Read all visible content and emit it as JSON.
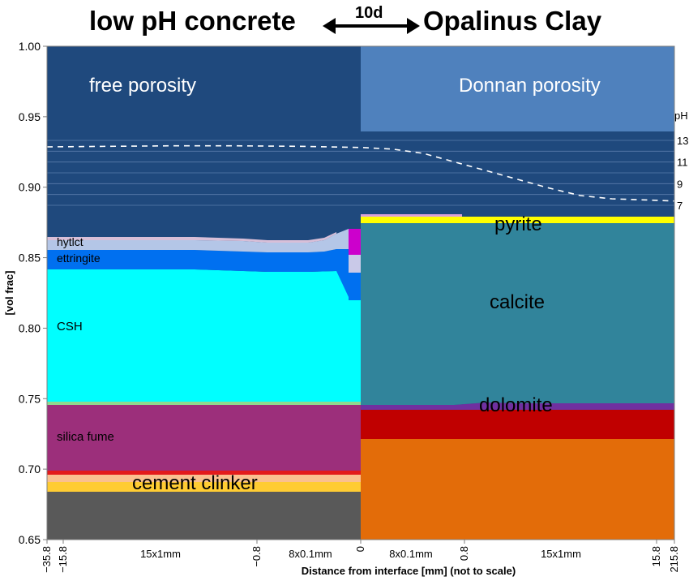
{
  "chart_data": {
    "type": "area",
    "title_left": "low pH concrete",
    "title_right": "Opalinus Clay",
    "arrow_label": "10d",
    "ylabel": "[vol frac]",
    "xlabel": "Distance from interface [mm] (not to scale)",
    "ylim": [
      0.65,
      1.0
    ],
    "yticks": [
      "1.00",
      "0.95",
      "0.90",
      "0.85",
      "0.80",
      "0.75",
      "0.70",
      "0.65"
    ],
    "xticks_rotated": [
      "−35.8",
      "−15.8",
      "−0.8",
      "0",
      "0.8",
      "15.8",
      "215.8"
    ],
    "x_segment_labels": [
      "15x1mm",
      "8x0.1mm",
      "8x0.1mm",
      "15x1mm"
    ],
    "colors": {
      "free_porosity": "#1f497d",
      "donnan_porosity": "#4f81bd",
      "cement_clinker_gray": "#595959",
      "cement_clinker_orange": "#fac090",
      "cement_clinker_yellow": "#ffcc33",
      "cement_clinker_red": "#e31a1c",
      "silica_fume": "#9c2f7b",
      "csh": "#00ffff",
      "ettringite": "#0070f0",
      "hydrotalcite": "#b4c6e7",
      "calcite": "#31849b",
      "dolomite": "#7030a0",
      "red_phase": "#c00000",
      "orange_phase": "#e36c09",
      "pyrite": "#ffff00",
      "ph_line": "#ffffff"
    },
    "left_region": {
      "label_porosity": "free porosity",
      "phases": [
        {
          "name": "cement clinker",
          "from": 0.65,
          "to": 0.702
        },
        {
          "name": "silica fume",
          "from": 0.702,
          "to": 0.747
        },
        {
          "name": "CSH",
          "from": 0.747,
          "to": 0.843
        },
        {
          "name": "ettringite",
          "from": 0.843,
          "to": 0.857
        },
        {
          "name": "hytlct",
          "from": 0.857,
          "to": 0.865
        }
      ]
    },
    "right_region": {
      "label_porosity": "Donnan porosity",
      "donnan_porosity_from": 0.939,
      "phases": [
        {
          "name": "",
          "from": 0.65,
          "to": 0.722
        },
        {
          "name": "",
          "from": 0.722,
          "to": 0.743
        },
        {
          "name": "dolomite",
          "from": 0.743,
          "to": 0.747
        },
        {
          "name": "calcite",
          "from": 0.747,
          "to": 0.874
        },
        {
          "name": "pyrite",
          "from": 0.874,
          "to": 0.881
        }
      ]
    },
    "ph_axis": {
      "label": "pH",
      "ticks": [
        "13",
        "11",
        "9",
        "7"
      ]
    },
    "ph_profile": {
      "x_frac": [
        0.0,
        0.1,
        0.2,
        0.3,
        0.4,
        0.5,
        0.55,
        0.6,
        0.65,
        0.7,
        0.75,
        0.8,
        0.85,
        0.9,
        0.95,
        1.0
      ],
      "ph": [
        12.4,
        12.45,
        12.5,
        12.5,
        12.45,
        12.35,
        12.2,
        11.8,
        11.0,
        10.2,
        9.4,
        8.6,
        7.9,
        7.6,
        7.5,
        7.4
      ]
    }
  }
}
